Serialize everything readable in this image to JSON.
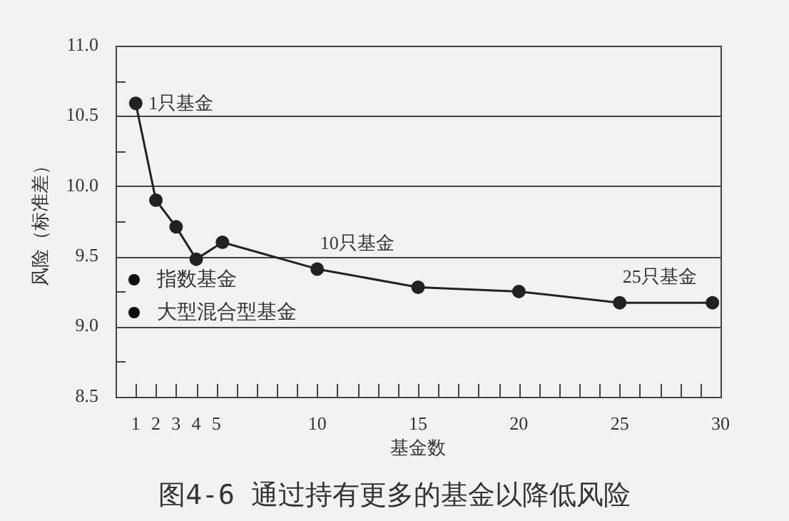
{
  "chart_data": {
    "type": "line",
    "title": "图4-6 通过持有更多的基金以降低风险",
    "xlabel": "基金数",
    "ylabel": "风险（标准差）",
    "x": [
      1,
      2,
      3,
      4,
      5.3,
      10,
      15,
      20,
      25,
      29.6
    ],
    "series": [
      {
        "color": "#222222",
        "values": [
          10.59,
          9.9,
          9.71,
          9.48,
          9.6,
          9.41,
          9.28,
          9.25,
          9.17,
          9.17
        ]
      }
    ],
    "marker": "circle",
    "line_style": "solid",
    "grid": "y",
    "legend": false,
    "xlim": [
      0,
      30
    ],
    "xticks": [
      1,
      2,
      3,
      4,
      5,
      {
        "value": 6,
        "label": null
      },
      {
        "value": 7,
        "label": null
      },
      {
        "value": 8,
        "label": null
      },
      {
        "value": 9,
        "label": null
      },
      10,
      {
        "value": 11,
        "label": null
      },
      {
        "value": 12,
        "label": null
      },
      {
        "value": 13,
        "label": null
      },
      {
        "value": 14,
        "label": null
      },
      15,
      {
        "value": 16,
        "label": null
      },
      {
        "value": 17,
        "label": null
      },
      {
        "value": 18,
        "label": null
      },
      {
        "value": 19,
        "label": null
      },
      20,
      {
        "value": 21,
        "label": null
      },
      {
        "value": 22,
        "label": null
      },
      {
        "value": 23,
        "label": null
      },
      {
        "value": 24,
        "label": null
      },
      25,
      {
        "value": 26,
        "label": null
      },
      {
        "value": 27,
        "label": null
      },
      {
        "value": 28,
        "label": null
      },
      {
        "value": 29,
        "label": null
      },
      30
    ],
    "ylim": [
      8.5,
      11.0
    ],
    "yticks": [
      {
        "value": 8.5,
        "label": "8.5"
      },
      {
        "value": 8.75,
        "label": null
      },
      {
        "value": 9.0,
        "label": "9.0"
      },
      {
        "value": 9.25,
        "label": null
      },
      {
        "value": 9.5,
        "label": "9.5"
      },
      {
        "value": 9.75,
        "label": null
      },
      {
        "value": 10.0,
        "label": "10.0"
      },
      {
        "value": 10.25,
        "label": null
      },
      {
        "value": 10.5,
        "label": "10.5"
      },
      {
        "value": 10.75,
        "label": null
      },
      {
        "value": 11.0,
        "label": "11.0"
      }
    ],
    "annotations": [
      {
        "text": "1只基金",
        "x": 1,
        "y": 10.59
      },
      {
        "text": "10只基金",
        "x": 10,
        "y": 9.41
      },
      {
        "text": "25只基金",
        "x": 25,
        "y": 9.17
      },
      "指数基金",
      "大型混合型基金"
    ]
  }
}
